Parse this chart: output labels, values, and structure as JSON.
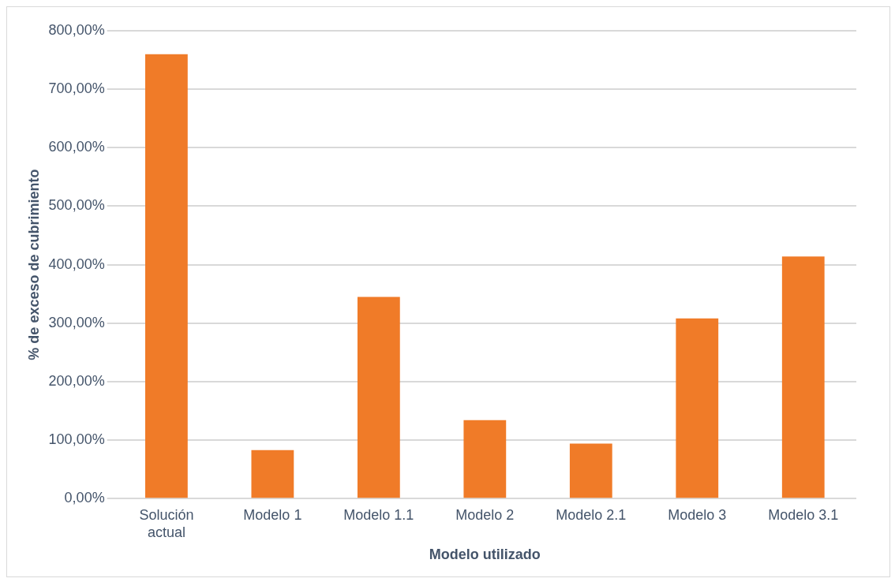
{
  "chart_data": {
    "type": "bar",
    "xlabel": "Modelo utilizado",
    "ylabel": "% de exceso de cubrimiento",
    "categories": [
      "Solución actual",
      "Modelo 1",
      "Modelo 1.1",
      "Modelo 2",
      "Modelo 2.1",
      "Modelo 3",
      "Modelo 3.1"
    ],
    "values": [
      760,
      83,
      345,
      134,
      94,
      308,
      414
    ],
    "color": "#f07b28",
    "ylim": [
      0,
      800
    ],
    "yticks": [
      {
        "value": 0,
        "label": "0,00%"
      },
      {
        "value": 100,
        "label": "100,00%"
      },
      {
        "value": 200,
        "label": "200,00%"
      },
      {
        "value": 300,
        "label": "300,00%"
      },
      {
        "value": 400,
        "label": "400,00%"
      },
      {
        "value": 500,
        "label": "500,00%"
      },
      {
        "value": 600,
        "label": "600,00%"
      },
      {
        "value": 700,
        "label": "700,00%"
      },
      {
        "value": 800,
        "label": "800,00%"
      }
    ],
    "grid": "y"
  }
}
